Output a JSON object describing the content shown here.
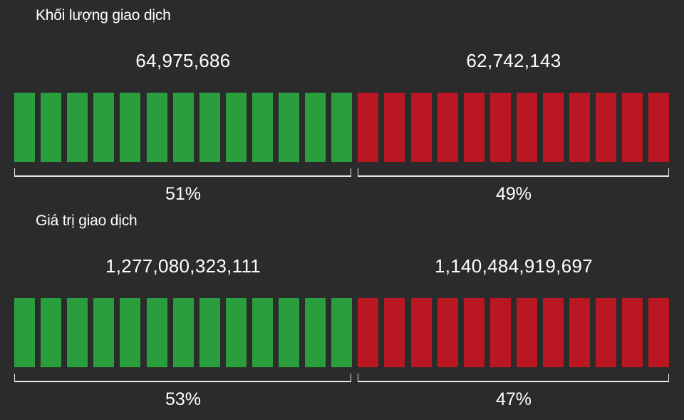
{
  "colors": {
    "buy": "#2a9e3c",
    "sell": "#bb1722",
    "background": "#2b2b2b"
  },
  "chart_data": [
    {
      "type": "bar",
      "title": "Khối lượng giao dịch",
      "series": [
        {
          "side": "buy",
          "value": "64,975,686",
          "percent_label": "51%",
          "percent": 51
        },
        {
          "side": "sell",
          "value": "62,742,143",
          "percent_label": "49%",
          "percent": 49
        }
      ]
    },
    {
      "type": "bar",
      "title": "Giá trị giao dịch",
      "series": [
        {
          "side": "buy",
          "value": "1,277,080,323,111",
          "percent_label": "53%",
          "percent": 53
        },
        {
          "side": "sell",
          "value": "1,140,484,919,697",
          "percent_label": "47%",
          "percent": 47
        }
      ]
    }
  ]
}
